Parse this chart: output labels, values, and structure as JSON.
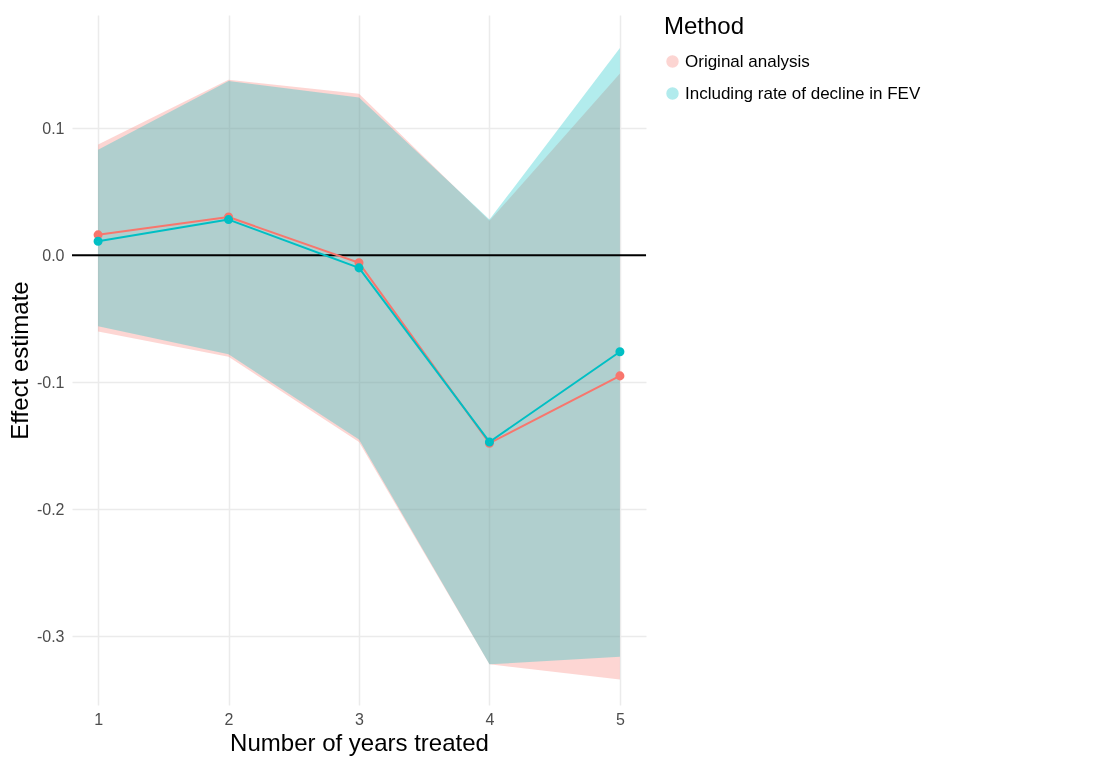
{
  "chart_data": {
    "type": "line",
    "xlabel": "Number of years treated",
    "ylabel": "Effect estimate",
    "legend_title": "Method",
    "x": [
      1,
      2,
      3,
      4,
      5
    ],
    "xlim": [
      0.8,
      5.2
    ],
    "xticks": [
      1,
      2,
      3,
      4,
      5
    ],
    "ylim": [
      -0.354,
      0.189
    ],
    "yticks": [
      {
        "value": -0.3,
        "label": "-0.3"
      },
      {
        "value": -0.2,
        "label": "-0.2"
      },
      {
        "value": -0.1,
        "label": "-0.1"
      },
      {
        "value": 0,
        "label": "0.0"
      },
      0.1
    ],
    "grid": true,
    "legend": "right",
    "marker": "circle",
    "line_style": "solid",
    "ref_lines": [
      {
        "axis": "y",
        "value": 0,
        "color": "#000000"
      }
    ],
    "series": [
      {
        "name": "Original analysis",
        "color": "#f8766d",
        "values": [
          0.016,
          0.03,
          -0.006,
          -0.148,
          -0.095
        ],
        "lower": [
          -0.06,
          -0.08,
          -0.147,
          -0.322,
          -0.334
        ],
        "upper": [
          0.087,
          0.138,
          0.127,
          0.027,
          0.143
        ]
      },
      {
        "name": "Including rate of decline in FEV",
        "color": "#00bfc4",
        "values": [
          0.011,
          0.028,
          -0.01,
          -0.147,
          -0.076
        ],
        "lower": [
          -0.056,
          -0.078,
          -0.145,
          -0.322,
          -0.316
        ],
        "upper": [
          0.083,
          0.137,
          0.124,
          0.028,
          0.163
        ]
      }
    ]
  }
}
